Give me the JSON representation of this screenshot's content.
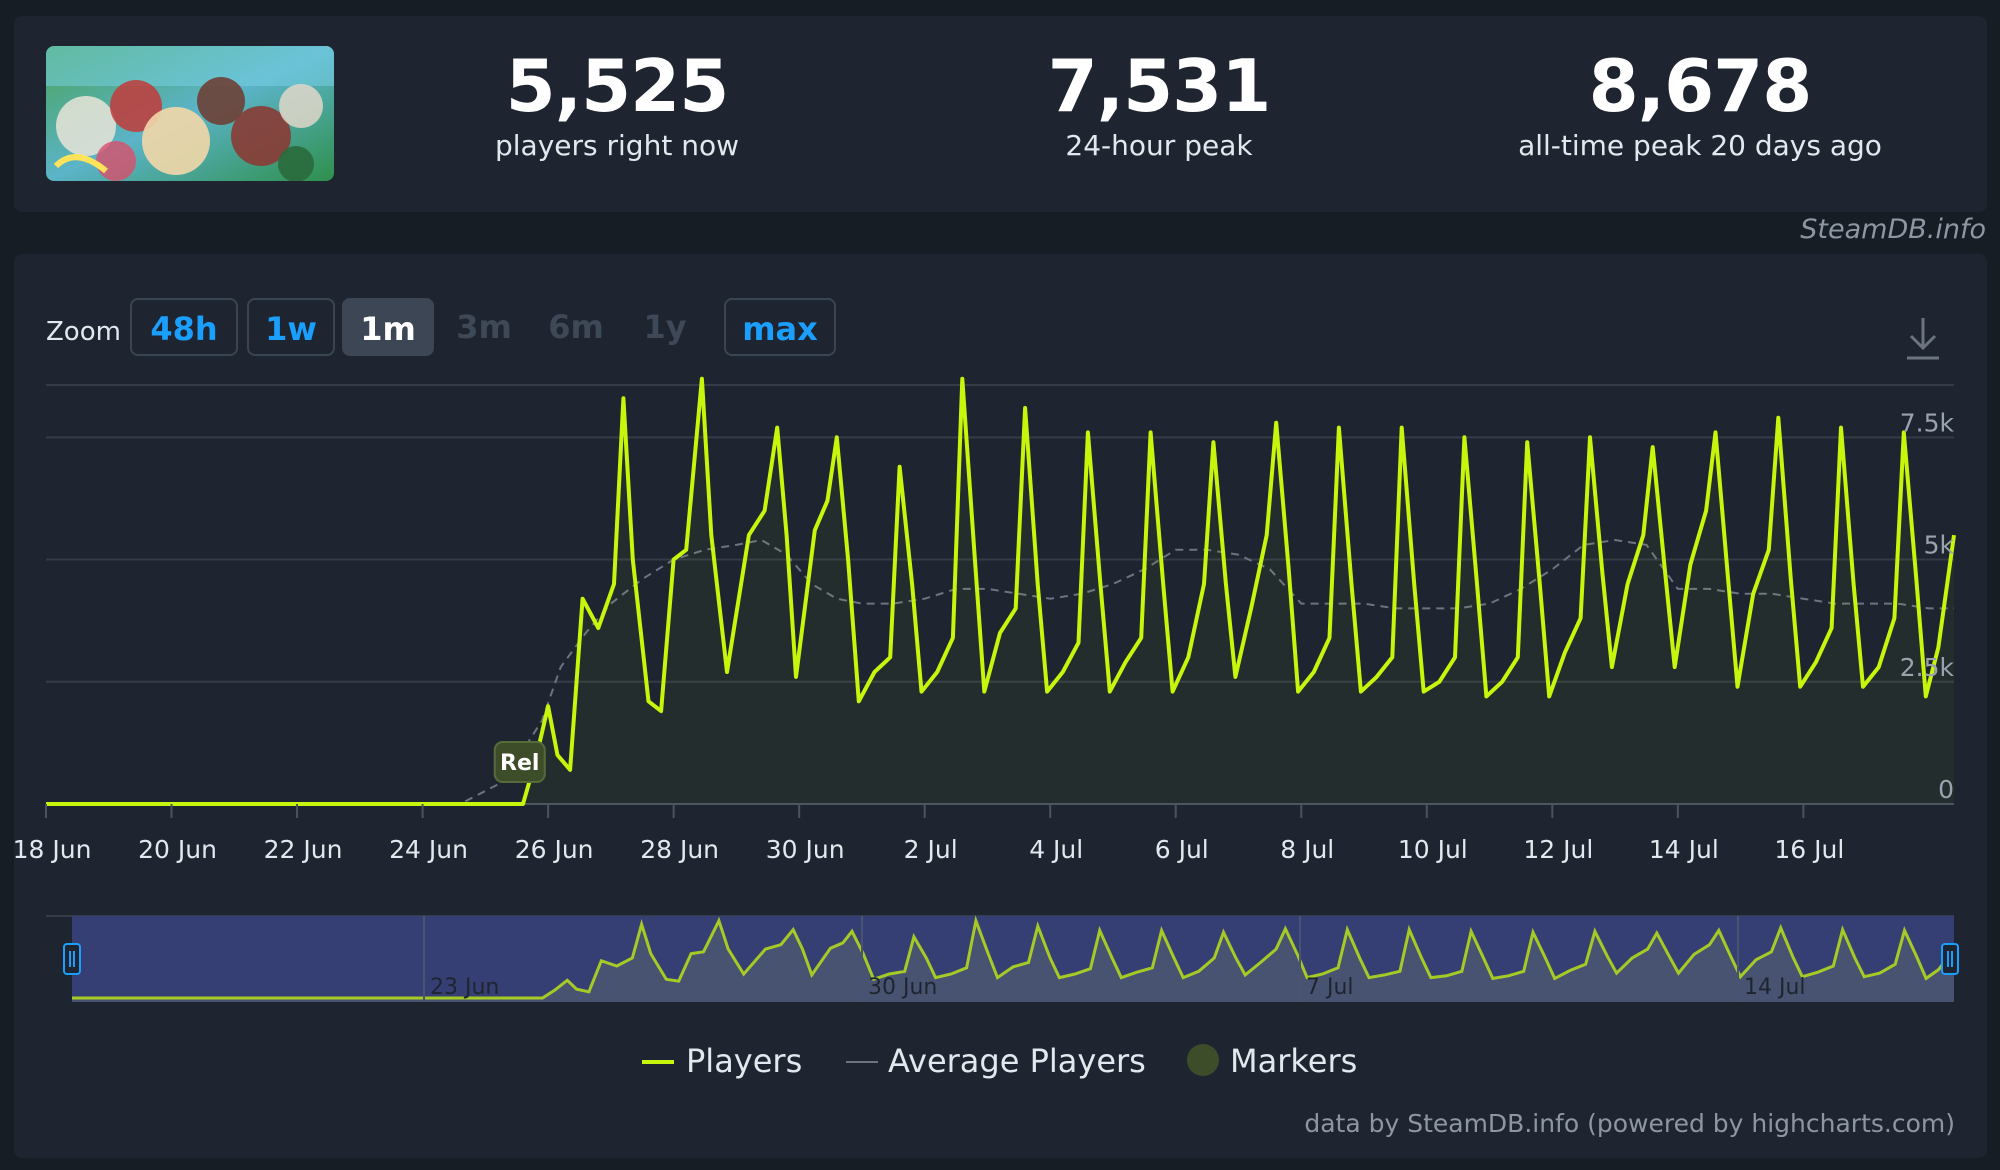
{
  "stats": {
    "current": {
      "value": "5,525",
      "label": "players right now"
    },
    "peak24": {
      "value": "7,531",
      "label": "24-hour peak"
    },
    "alltime": {
      "value": "8,678",
      "label": "all-time peak 20 days ago"
    }
  },
  "watermark": "SteamDB.info",
  "zoom": {
    "label": "Zoom",
    "buttons": [
      {
        "label": "48h",
        "state": "outline"
      },
      {
        "label": "1w",
        "state": "outline"
      },
      {
        "label": "1m",
        "state": "active"
      },
      {
        "label": "3m",
        "state": "disabled"
      },
      {
        "label": "6m",
        "state": "disabled"
      },
      {
        "label": "1y",
        "state": "disabled"
      },
      {
        "label": "max",
        "state": "outline"
      }
    ]
  },
  "icons": {
    "download": "download-icon"
  },
  "colors": {
    "players": "#c8f50c",
    "average": "#6b7480",
    "marker": "#3d4d2a",
    "navigator": "#363f73"
  },
  "footer_credit": "data by SteamDB.info (powered by highcharts.com)",
  "chart_data": {
    "type": "line",
    "x_unit": "day (day 0 = 18 Jun)",
    "xlim": [
      0,
      30.4
    ],
    "ylim": [
      0,
      9000
    ],
    "y_ticks": [
      0,
      2500,
      5000,
      7500
    ],
    "y_tick_labels": [
      "0",
      "2.5k",
      "5k",
      "7.5k"
    ],
    "x_ticks": [
      0,
      2,
      4,
      6,
      8,
      10,
      12,
      14,
      16,
      18,
      20,
      22,
      24,
      26,
      28
    ],
    "x_tick_labels": [
      "18 Jun",
      "20 Jun",
      "22 Jun",
      "24 Jun",
      "26 Jun",
      "28 Jun",
      "30 Jun",
      "2 Jul",
      "4 Jul",
      "6 Jul",
      "8 Jul",
      "10 Jul",
      "12 Jul",
      "14 Jul",
      "16 Jul"
    ],
    "grid": true,
    "legend_position": "bottom-center",
    "series": [
      {
        "name": "Players",
        "points": [
          [
            0,
            0
          ],
          [
            7.1,
            0
          ],
          [
            7.6,
            0
          ],
          [
            7.8,
            900
          ],
          [
            8.0,
            2000
          ],
          [
            8.15,
            1000
          ],
          [
            8.35,
            700
          ],
          [
            8.55,
            4200
          ],
          [
            8.8,
            3600
          ],
          [
            9.05,
            4500
          ],
          [
            9.2,
            8300
          ],
          [
            9.35,
            5000
          ],
          [
            9.6,
            2100
          ],
          [
            9.8,
            1900
          ],
          [
            10.0,
            5000
          ],
          [
            10.2,
            5200
          ],
          [
            10.45,
            8700
          ],
          [
            10.6,
            5500
          ],
          [
            10.85,
            2700
          ],
          [
            11.2,
            5500
          ],
          [
            11.45,
            6000
          ],
          [
            11.65,
            7700
          ],
          [
            11.8,
            5500
          ],
          [
            11.95,
            2600
          ],
          [
            12.25,
            5600
          ],
          [
            12.45,
            6200
          ],
          [
            12.6,
            7500
          ],
          [
            12.78,
            5000
          ],
          [
            12.95,
            2100
          ],
          [
            13.2,
            2700
          ],
          [
            13.45,
            3000
          ],
          [
            13.6,
            6900
          ],
          [
            13.8,
            4500
          ],
          [
            13.95,
            2300
          ],
          [
            14.2,
            2700
          ],
          [
            14.45,
            3400
          ],
          [
            14.6,
            8700
          ],
          [
            14.8,
            5000
          ],
          [
            14.95,
            2300
          ],
          [
            15.2,
            3500
          ],
          [
            15.45,
            4000
          ],
          [
            15.6,
            8100
          ],
          [
            15.8,
            4500
          ],
          [
            15.95,
            2300
          ],
          [
            16.2,
            2700
          ],
          [
            16.45,
            3300
          ],
          [
            16.6,
            7600
          ],
          [
            16.8,
            4500
          ],
          [
            16.95,
            2300
          ],
          [
            17.2,
            2900
          ],
          [
            17.45,
            3400
          ],
          [
            17.6,
            7600
          ],
          [
            17.8,
            4500
          ],
          [
            17.95,
            2300
          ],
          [
            18.2,
            3000
          ],
          [
            18.45,
            4500
          ],
          [
            18.6,
            7400
          ],
          [
            18.8,
            4500
          ],
          [
            18.95,
            2600
          ],
          [
            19.2,
            4000
          ],
          [
            19.45,
            5500
          ],
          [
            19.6,
            7800
          ],
          [
            19.8,
            4800
          ],
          [
            19.95,
            2300
          ],
          [
            20.2,
            2700
          ],
          [
            20.45,
            3400
          ],
          [
            20.6,
            7700
          ],
          [
            20.8,
            4500
          ],
          [
            20.95,
            2300
          ],
          [
            21.2,
            2600
          ],
          [
            21.45,
            3000
          ],
          [
            21.6,
            7700
          ],
          [
            21.8,
            4500
          ],
          [
            21.95,
            2300
          ],
          [
            22.2,
            2500
          ],
          [
            22.45,
            3000
          ],
          [
            22.6,
            7500
          ],
          [
            22.8,
            4500
          ],
          [
            22.95,
            2200
          ],
          [
            23.2,
            2500
          ],
          [
            23.45,
            3000
          ],
          [
            23.6,
            7400
          ],
          [
            23.8,
            4500
          ],
          [
            23.95,
            2200
          ],
          [
            24.2,
            3100
          ],
          [
            24.45,
            3800
          ],
          [
            24.6,
            7500
          ],
          [
            24.8,
            4700
          ],
          [
            24.95,
            2800
          ],
          [
            25.2,
            4500
          ],
          [
            25.45,
            5500
          ],
          [
            25.6,
            7300
          ],
          [
            25.8,
            4700
          ],
          [
            25.95,
            2800
          ],
          [
            26.2,
            4900
          ],
          [
            26.45,
            6000
          ],
          [
            26.6,
            7600
          ],
          [
            26.8,
            4600
          ],
          [
            26.95,
            2400
          ],
          [
            27.2,
            4300
          ],
          [
            27.45,
            5200
          ],
          [
            27.6,
            7900
          ],
          [
            27.8,
            4600
          ],
          [
            27.95,
            2400
          ],
          [
            28.2,
            2900
          ],
          [
            28.45,
            3600
          ],
          [
            28.6,
            7700
          ],
          [
            28.8,
            4500
          ],
          [
            28.95,
            2400
          ],
          [
            29.2,
            2800
          ],
          [
            29.45,
            3800
          ],
          [
            29.6,
            7600
          ],
          [
            29.8,
            4600
          ],
          [
            29.95,
            2200
          ],
          [
            30.15,
            3200
          ],
          [
            30.4,
            5500
          ]
        ]
      },
      {
        "name": "Average Players",
        "points": [
          [
            0,
            0
          ],
          [
            6.6,
            0
          ],
          [
            7.2,
            400
          ],
          [
            7.6,
            1100
          ],
          [
            7.9,
            1700
          ],
          [
            8.2,
            2800
          ],
          [
            8.6,
            3500
          ],
          [
            9.0,
            4100
          ],
          [
            9.5,
            4600
          ],
          [
            10.0,
            5000
          ],
          [
            10.5,
            5200
          ],
          [
            11.0,
            5300
          ],
          [
            11.4,
            5400
          ],
          [
            11.8,
            5100
          ],
          [
            12.2,
            4500
          ],
          [
            12.6,
            4200
          ],
          [
            13.0,
            4100
          ],
          [
            13.5,
            4100
          ],
          [
            14.0,
            4200
          ],
          [
            14.5,
            4400
          ],
          [
            15.0,
            4400
          ],
          [
            15.5,
            4300
          ],
          [
            16.0,
            4200
          ],
          [
            16.5,
            4300
          ],
          [
            17.0,
            4500
          ],
          [
            17.5,
            4800
          ],
          [
            18.0,
            5200
          ],
          [
            18.5,
            5200
          ],
          [
            19.0,
            5100
          ],
          [
            19.5,
            4800
          ],
          [
            20.0,
            4100
          ],
          [
            20.5,
            4100
          ],
          [
            21.0,
            4100
          ],
          [
            21.5,
            4000
          ],
          [
            22.0,
            4000
          ],
          [
            22.5,
            4000
          ],
          [
            23.0,
            4100
          ],
          [
            23.5,
            4400
          ],
          [
            24.0,
            4800
          ],
          [
            24.5,
            5300
          ],
          [
            25.0,
            5400
          ],
          [
            25.5,
            5300
          ],
          [
            26.0,
            4400
          ],
          [
            26.5,
            4400
          ],
          [
            27.0,
            4300
          ],
          [
            27.5,
            4300
          ],
          [
            28.0,
            4200
          ],
          [
            28.5,
            4100
          ],
          [
            29.0,
            4100
          ],
          [
            29.5,
            4100
          ],
          [
            30.0,
            4000
          ],
          [
            30.4,
            4000
          ]
        ]
      }
    ],
    "markers": [
      {
        "label": "Rel",
        "x": 7.5
      }
    ],
    "navigator": {
      "date_labels": [
        "23 Jun",
        "30 Jun",
        "7 Jul",
        "14 Jul"
      ]
    },
    "legend": [
      "Players",
      "Average Players",
      "Markers"
    ]
  }
}
